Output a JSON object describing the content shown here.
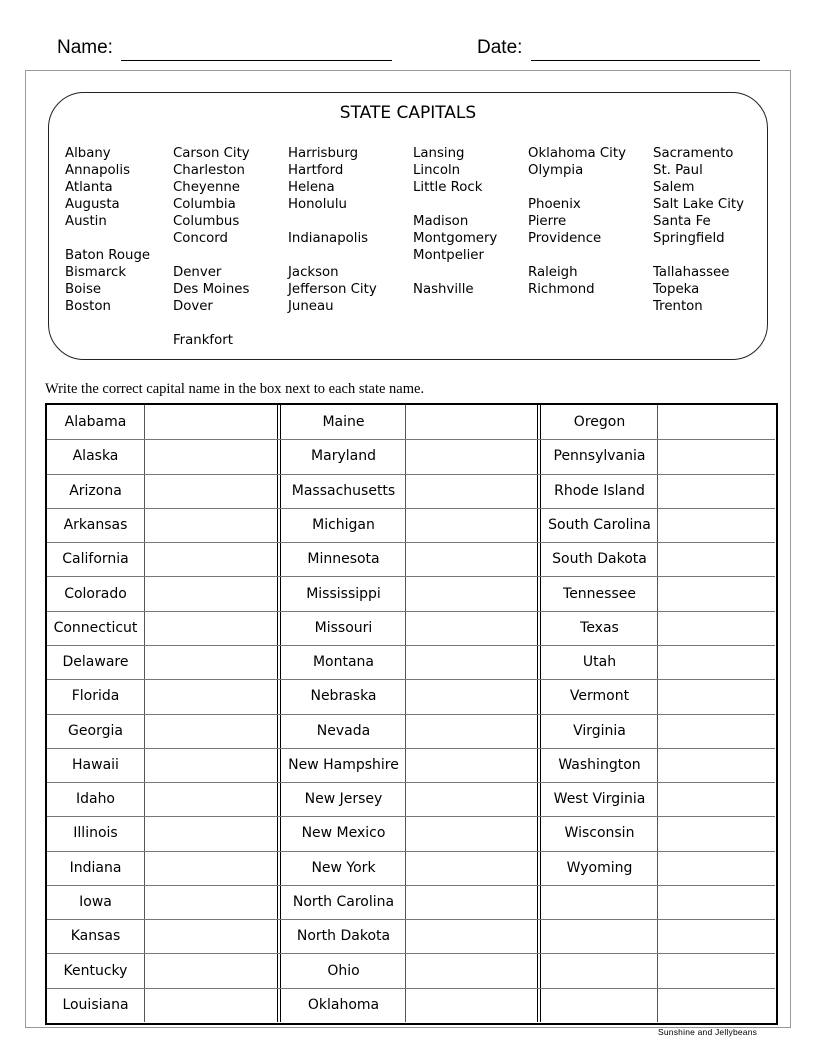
{
  "header": {
    "name_label": "Name:",
    "date_label": "Date:"
  },
  "capitals_box": {
    "title": "STATE CAPITALS",
    "columns": [
      [
        "Albany",
        "Annapolis",
        "Atlanta",
        "Augusta",
        "Austin",
        "",
        "Baton Rouge",
        "Bismarck",
        "Boise",
        "Boston"
      ],
      [
        "Carson City",
        "Charleston",
        "Cheyenne",
        "Columbia",
        "Columbus",
        "Concord",
        "",
        "Denver",
        "Des Moines",
        "Dover",
        "",
        "Frankfort"
      ],
      [
        "Harrisburg",
        "Hartford",
        "Helena",
        "Honolulu",
        "",
        "Indianapolis",
        "",
        "Jackson",
        "Jefferson City",
        "Juneau"
      ],
      [
        "Lansing",
        "Lincoln",
        "Little Rock",
        "",
        "Madison",
        "Montgomery",
        "Montpelier",
        "",
        "Nashville"
      ],
      [
        "Oklahoma City",
        "Olympia",
        "",
        "Phoenix",
        "Pierre",
        "Providence",
        "",
        "Raleigh",
        "Richmond"
      ],
      [
        "Sacramento",
        "St. Paul",
        "Salem",
        "Salt Lake City",
        "Santa Fe",
        "Springfield",
        "",
        "Tallahassee",
        "Topeka",
        "Trenton"
      ]
    ]
  },
  "instructions": "Write the correct capital name in the box next to each state name.",
  "table": {
    "columns": [
      [
        "Alabama",
        "Alaska",
        "Arizona",
        "Arkansas",
        "California",
        "Colorado",
        "Connecticut",
        "Delaware",
        "Florida",
        "Georgia",
        "Hawaii",
        "Idaho",
        "Illinois",
        "Indiana",
        "Iowa",
        "Kansas",
        "Kentucky",
        "Louisiana"
      ],
      [
        "Maine",
        "Maryland",
        "Massachusetts",
        "Michigan",
        "Minnesota",
        "Mississippi",
        "Missouri",
        "Montana",
        "Nebraska",
        "Nevada",
        "New Hampshire",
        "New Jersey",
        "New Mexico",
        "New York",
        "North Carolina",
        "North Dakota",
        "Ohio",
        "Oklahoma"
      ],
      [
        "Oregon",
        "Pennsylvania",
        "Rhode Island",
        "South Carolina",
        "South Dakota",
        "Tennessee",
        "Texas",
        "Utah",
        "Vermont",
        "Virginia",
        "Washington",
        "West Virginia",
        "Wisconsin",
        "Wyoming",
        "",
        "",
        "",
        ""
      ]
    ]
  },
  "footer": "Sunshine and Jellybeans"
}
